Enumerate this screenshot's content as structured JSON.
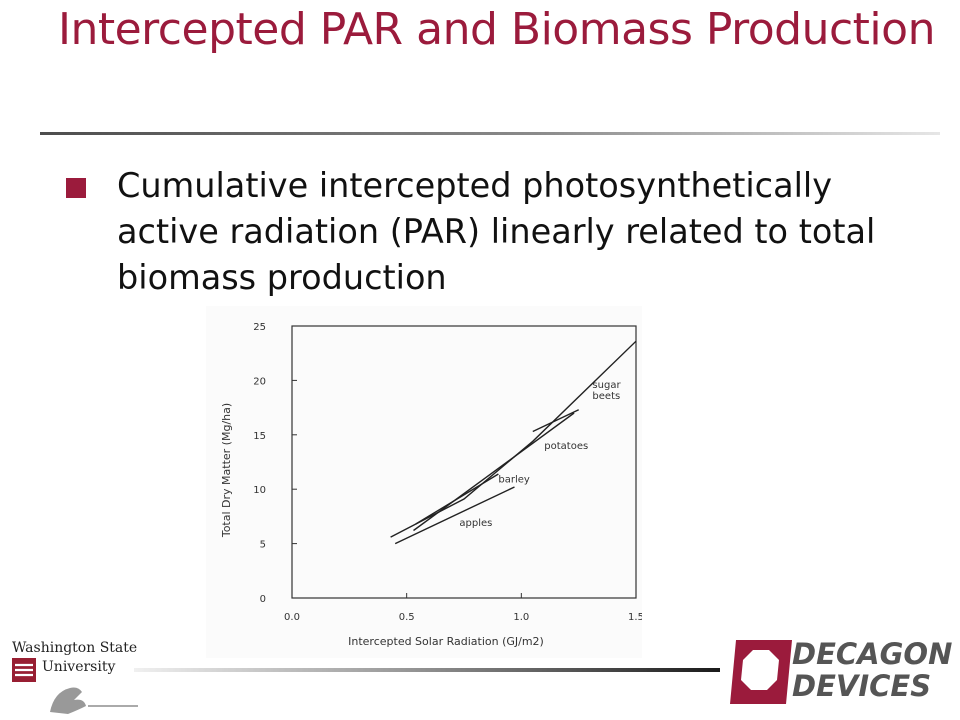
{
  "slide": {
    "title": "Intercepted PAR and Biomass Production",
    "bullet": "Cumulative intercepted photosynthetically active radiation (PAR) linearly related to total biomass production"
  },
  "chart_data": {
    "type": "line",
    "xlabel": "Intercepted Solar Radiation (GJ/m2)",
    "ylabel": "Total Dry Matter (Mg/ha)",
    "xlim": [
      0,
      1.5
    ],
    "ylim": [
      0,
      25
    ],
    "xticks": [
      "0.0",
      "0.5",
      "1.0",
      "1.5"
    ],
    "yticks": [
      "0",
      "5",
      "10",
      "15",
      "20",
      "25"
    ],
    "grid": false,
    "series": [
      {
        "name": "sugar beets",
        "x": [
          0.43,
          0.75,
          1.05,
          1.5
        ],
        "y": [
          5.6,
          9.1,
          14.4,
          23.6
        ]
      },
      {
        "name": "sugar beets",
        "x": [
          1.05,
          1.25
        ],
        "y": [
          15.3,
          17.3
        ]
      },
      {
        "name": "potatoes",
        "x": [
          0.53,
          1.23
        ],
        "y": [
          6.2,
          17.0
        ]
      },
      {
        "name": "barley",
        "x": [
          0.54,
          0.9
        ],
        "y": [
          6.8,
          11.4
        ]
      },
      {
        "name": "apples",
        "x": [
          0.45,
          0.97
        ],
        "y": [
          5.0,
          10.2
        ]
      }
    ],
    "annotations": [
      {
        "text": "sugar",
        "x": 1.31,
        "y": 19.3
      },
      {
        "text": "beets",
        "x": 1.31,
        "y": 18.3
      },
      {
        "text": "potatoes",
        "x": 1.1,
        "y": 13.7
      },
      {
        "text": "barley",
        "x": 0.9,
        "y": 10.6
      },
      {
        "text": "apples",
        "x": 0.73,
        "y": 6.6
      }
    ]
  },
  "logos": {
    "wsu_line1": "Washington State",
    "wsu_line2": "University",
    "decagon_line1": "DECAGON",
    "decagon_line2": "DEVICES"
  },
  "colors": {
    "title": "#9b1b3c",
    "bullet": "#9b1b3c",
    "wsu_crimson": "#981e32",
    "decagon": "#9b1b3c"
  }
}
